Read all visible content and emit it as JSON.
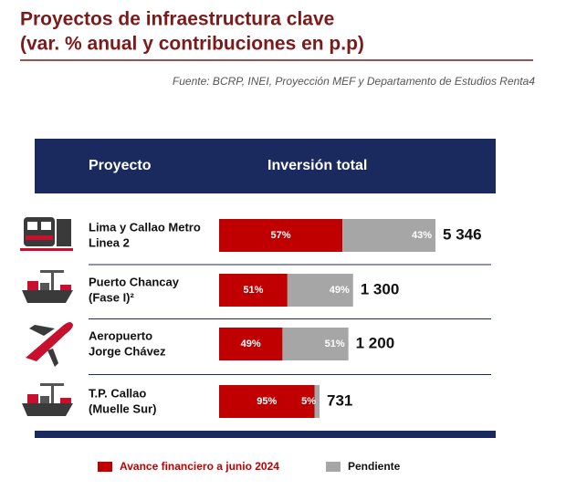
{
  "chart_data": {
    "type": "bar",
    "title": [
      "Proyectos de infraestructura clave",
      "(var. % anual y contribuciones en p.p)"
    ],
    "source": "Fuente: BCRP, INEI, Proyección MEF y Departamento de Estudios Renta4",
    "columns": [
      "Proyecto",
      "Inversión total"
    ],
    "categories": [
      [
        "Lima y Callao Metro",
        "Linea 2"
      ],
      [
        "Puerto Chancay",
        "(Fase I)²"
      ],
      [
        "Aeropuerto",
        "Jorge Chávez"
      ],
      [
        "T.P. Callao",
        "(Muelle Sur)"
      ]
    ],
    "series": [
      {
        "name": "Avance financiero a junio 2024",
        "color": "#c00000",
        "values": [
          57,
          51,
          49,
          95
        ],
        "value_labels": [
          "57%",
          "51%",
          "49%",
          "95%"
        ]
      },
      {
        "name": "Pendiente",
        "color": "#a6a6a6",
        "values": [
          43,
          49,
          51,
          5
        ],
        "value_labels": [
          "43%",
          "49%",
          "51%",
          "5%"
        ]
      }
    ],
    "totals": {
      "values": [
        5346,
        1300,
        1200,
        731
      ],
      "value_labels": [
        "5 346",
        "1 300",
        "1 200",
        "731"
      ]
    }
  }
}
